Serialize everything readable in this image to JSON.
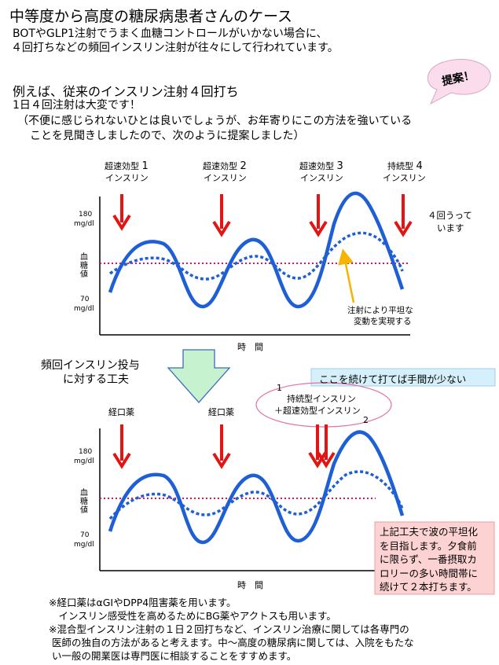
{
  "header": {
    "title": "中等度から高度の糖尿病患者さんのケース",
    "line1": "BOTやGLP1注射でうまく血糖コントロールがいかない場合に、",
    "line2": "４回打ちなどの頻回インスリン注射が往々にして行われています。"
  },
  "proposal_bubble": "提案！",
  "section": {
    "heading": "例えば、従来のインスリン注射４回打ち",
    "line1": "1日４回注射は大変です！",
    "line2": "（不便に感じられないひとは良いでしょうが、お年寄りにこの方法を強いている",
    "line3": "ことを見聞きしましたので、次のように提案しました）"
  },
  "chart1": {
    "labels": [
      {
        "type": "超速効型",
        "name": "インスリン",
        "num": "1"
      },
      {
        "type": "超速効型",
        "name": "インスリン",
        "num": "2"
      },
      {
        "type": "超速効型",
        "name": "インスリン",
        "num": "3"
      },
      {
        "type": "持続型",
        "name": "インスリン",
        "num": "4"
      }
    ],
    "side_note_l1": "４回うって",
    "side_note_l2": "います",
    "y_top": "180",
    "y_top_unit": "mg/dl",
    "y_mid": "血糖値",
    "y_bottom": "70",
    "y_bottom_unit": "mg/dl",
    "x_label": "時　間",
    "annotation_l1": "注射により平坦な",
    "annotation_l2": "変動を実現する"
  },
  "transition": {
    "label_l1": "頻回インスリン投与",
    "label_l2": "に対する工夫"
  },
  "callout_top": "ここを続けて打てば手間が少ない",
  "chart2": {
    "label_oral_1": "経口薬",
    "label_oral_2": "経口薬",
    "oval_num1": "1",
    "oval_l1": "持続型インスリン",
    "oval_l2": "＋超速効型インスリン",
    "oval_num2": "2",
    "y_top": "180",
    "y_top_unit": "mg/dl",
    "y_mid": "血糖値",
    "y_bottom": "70",
    "y_bottom_unit": "mg/dl",
    "x_label": "時　間"
  },
  "pink_box": {
    "l1": "上記工夫で波の平坦化",
    "l2": "を目指します。夕食前",
    "l3": "に限らず、一番摂取カ",
    "l4": "ロリーの多い時間帯に",
    "l5": "続けて２本打ちます。"
  },
  "notes": {
    "n1": "※経口薬はαGIやDPP4阻害薬を用います。",
    "n2": "　インスリン感受性を高めるためにBG薬やアクトスも用います。",
    "n3": "※混合型インスリン注射の１日２回打ちなど、インスリン治療に関しては各専門の",
    "n4": "医師の独自の方法があると考えます。中～高度の糖尿病に関しては、入院をもたな",
    "n5": "い一般の開業医は専門医に相談することをすすめます。"
  },
  "colors": {
    "curve": "#1f5fd6",
    "arrow": "#e31414",
    "target_line": "#e0106a",
    "yellow_arrow": "#f4b400",
    "transition_arrow": "#c6f2cf",
    "pink_box": "#fcd2d2",
    "bubble": "#fadcec"
  }
}
